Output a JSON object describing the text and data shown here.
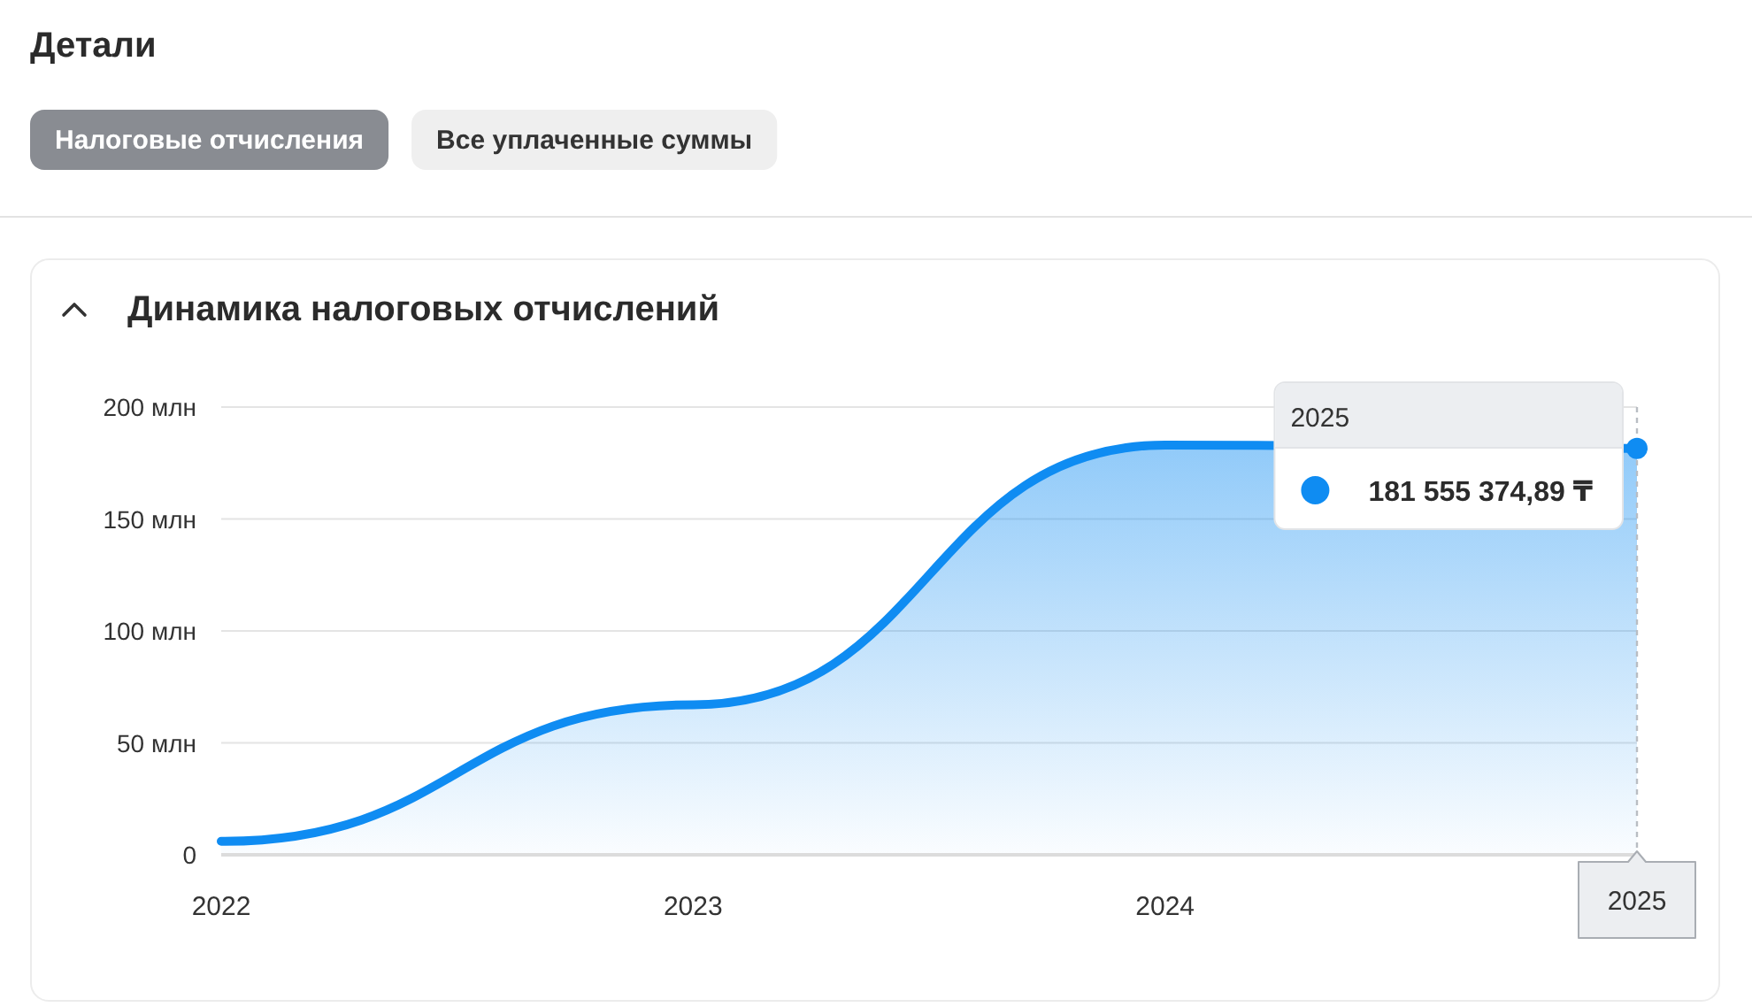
{
  "chart_data": {
    "type": "area",
    "title": "Динамика налоговых отчислений",
    "categories": [
      "2022",
      "2023",
      "2024",
      "2025"
    ],
    "values": [
      6,
      67,
      183,
      181.56
    ],
    "color": "#0f8cf2",
    "ylim": [
      0,
      200
    ],
    "yticks": [
      0,
      {
        "value": 50,
        "label": "50 млн"
      },
      {
        "value": 100,
        "label": "100 млн"
      },
      {
        "value": 150,
        "label": "150 млн"
      },
      {
        "value": 200,
        "label": "200 млн"
      }
    ],
    "grid": "y",
    "annotations": [
      "Детали",
      "Налоговые отчисления",
      "Все уплаченные суммы",
      {
        "text": "181 555 374,89 ₸",
        "x": "2025",
        "y": 181.56
      }
    ]
  }
}
